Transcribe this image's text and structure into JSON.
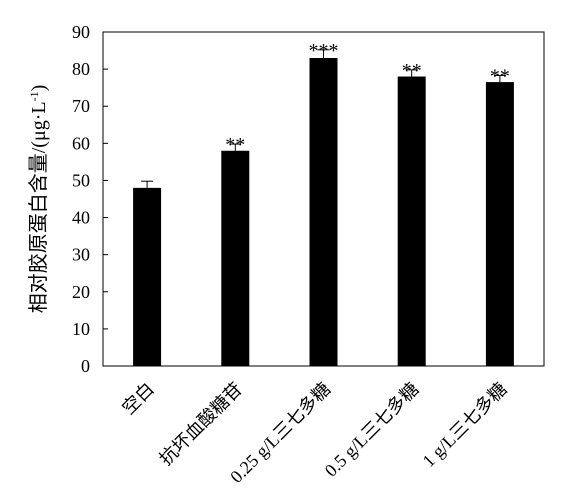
{
  "chart_data": {
    "type": "bar",
    "categories": [
      "空白",
      "抗坏血酸糖苷",
      "0.25 g/L三七多糖",
      "0.5 g/L三七多糖",
      "1 g/L三七多糖"
    ],
    "values": [
      48,
      58,
      83,
      78,
      76.5
    ],
    "errors": [
      1.8,
      1.8,
      2.2,
      1.8,
      1.8
    ],
    "significance": [
      "",
      "**",
      "***",
      "**",
      "**"
    ],
    "ylabel": "相对胶原蛋白含量/(μg·L⁻¹)",
    "ylabel_main": "相对胶原蛋白含量/(μg·L",
    "ylabel_sup": "-1",
    "ylabel_close": ")",
    "ylim": [
      0,
      90
    ],
    "yticks": [
      0,
      10,
      20,
      30,
      40,
      50,
      60,
      70,
      80,
      90
    ],
    "bar_color": "#000000",
    "grid": false
  }
}
